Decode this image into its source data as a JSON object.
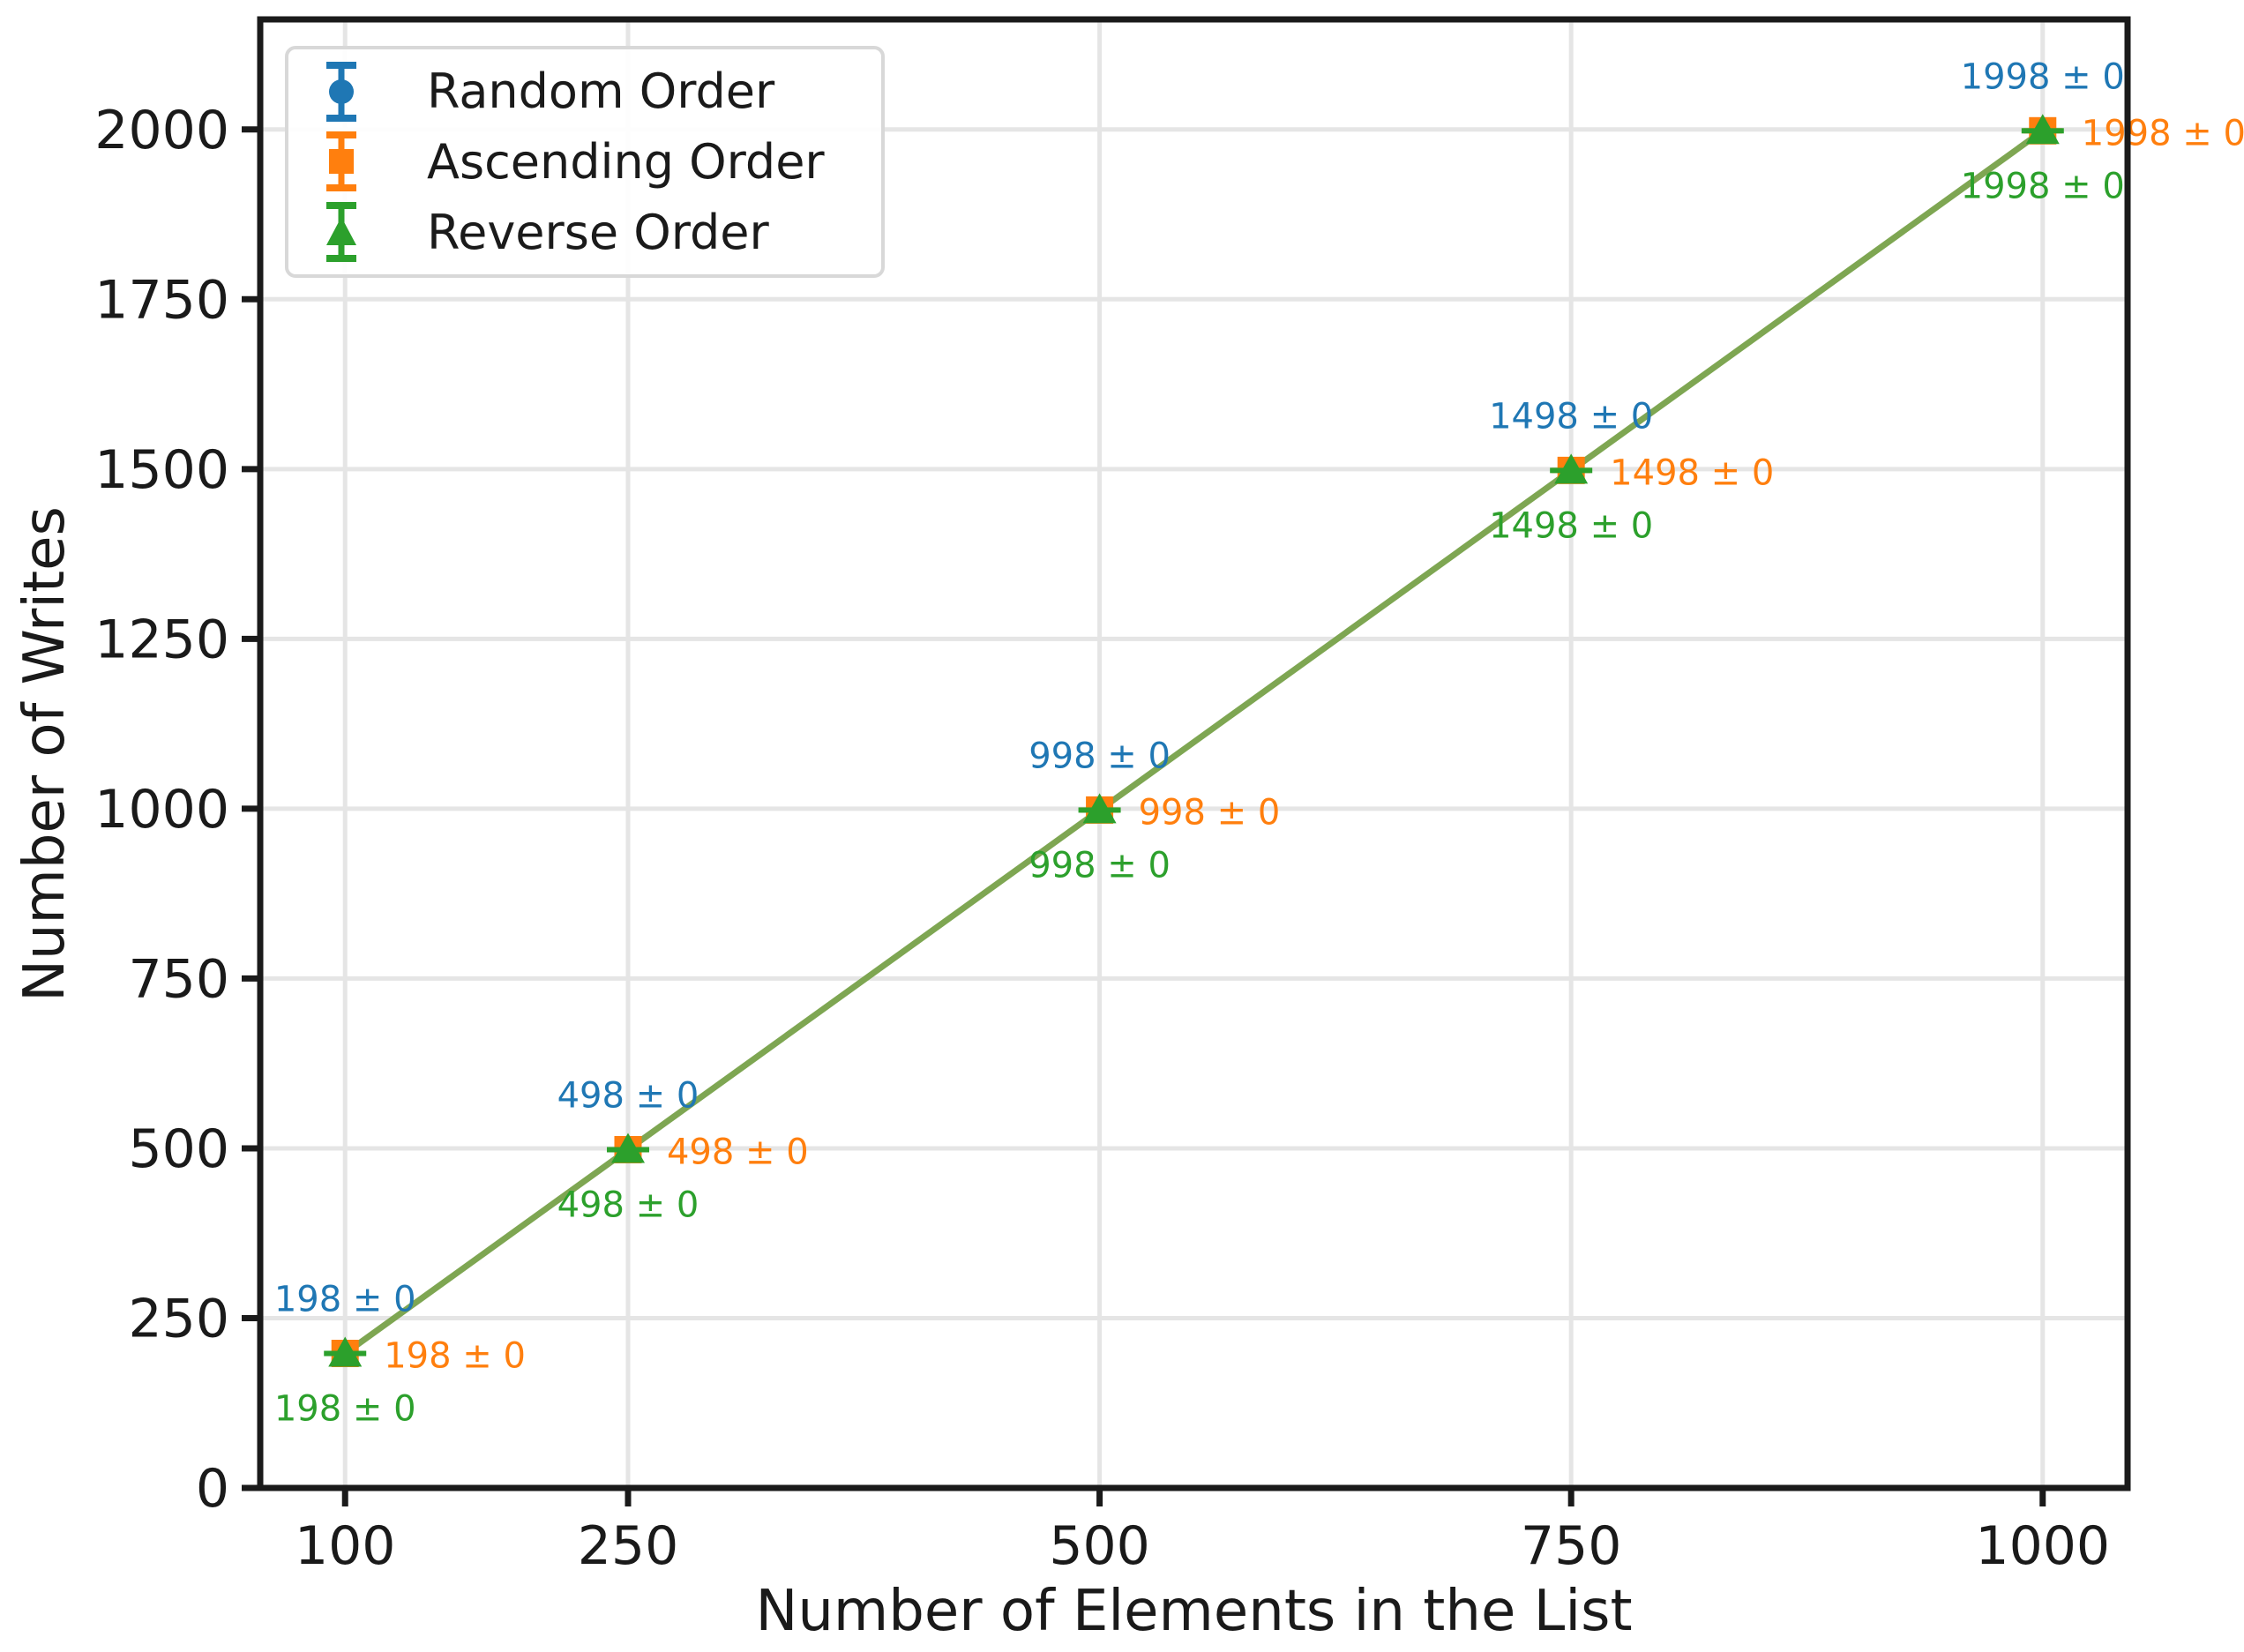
{
  "chart_data": {
    "type": "line",
    "title": "",
    "xlabel": "Number of Elements in the List",
    "ylabel": "Number of Writes",
    "x": [
      100,
      250,
      500,
      750,
      1000
    ],
    "x_tick_labels": [
      "100",
      "250",
      "500",
      "750",
      "1000"
    ],
    "y_ticks": [
      0,
      250,
      500,
      750,
      1000,
      1250,
      1500,
      1750,
      2000
    ],
    "y_tick_labels": [
      "0",
      "250",
      "500",
      "750",
      "1000",
      "1250",
      "1500",
      "1750",
      "2000"
    ],
    "xlim": [
      55,
      1045
    ],
    "ylim": [
      0,
      2162
    ],
    "grid": true,
    "legend_position": "upper left",
    "series": [
      {
        "name": "Random Order",
        "marker": "circle",
        "color": "#1f77b4",
        "values": [
          198,
          498,
          998,
          1498,
          1998
        ],
        "errors": [
          0,
          0,
          0,
          0,
          0
        ],
        "annotation_labels": [
          "198 ± 0",
          "498 ± 0",
          "998 ± 0",
          "1498 ± 0",
          "1998 ± 0"
        ],
        "annotation_position": "above"
      },
      {
        "name": "Ascending Order",
        "marker": "square",
        "color": "#ff7f0e",
        "values": [
          198,
          498,
          998,
          1498,
          1998
        ],
        "errors": [
          0,
          0,
          0,
          0,
          0
        ],
        "annotation_labels": [
          "198 ± 0",
          "498 ± 0",
          "998 ± 0",
          "1498 ± 0",
          "1998 ± 0"
        ],
        "annotation_position": "right"
      },
      {
        "name": "Reverse Order",
        "marker": "triangle",
        "color": "#2ca02c",
        "values": [
          198,
          498,
          998,
          1498,
          1998
        ],
        "errors": [
          0,
          0,
          0,
          0,
          0
        ],
        "annotation_labels": [
          "198 ± 0",
          "498 ± 0",
          "998 ± 0",
          "1498 ± 0",
          "1998 ± 0"
        ],
        "annotation_position": "below"
      }
    ],
    "colors": {
      "blended_line": "#7ea652",
      "grid": "#e5e5e5",
      "spine": "#1a1a1a",
      "text": "#1a1a1a",
      "legend_border": "#d8d8d8"
    }
  }
}
